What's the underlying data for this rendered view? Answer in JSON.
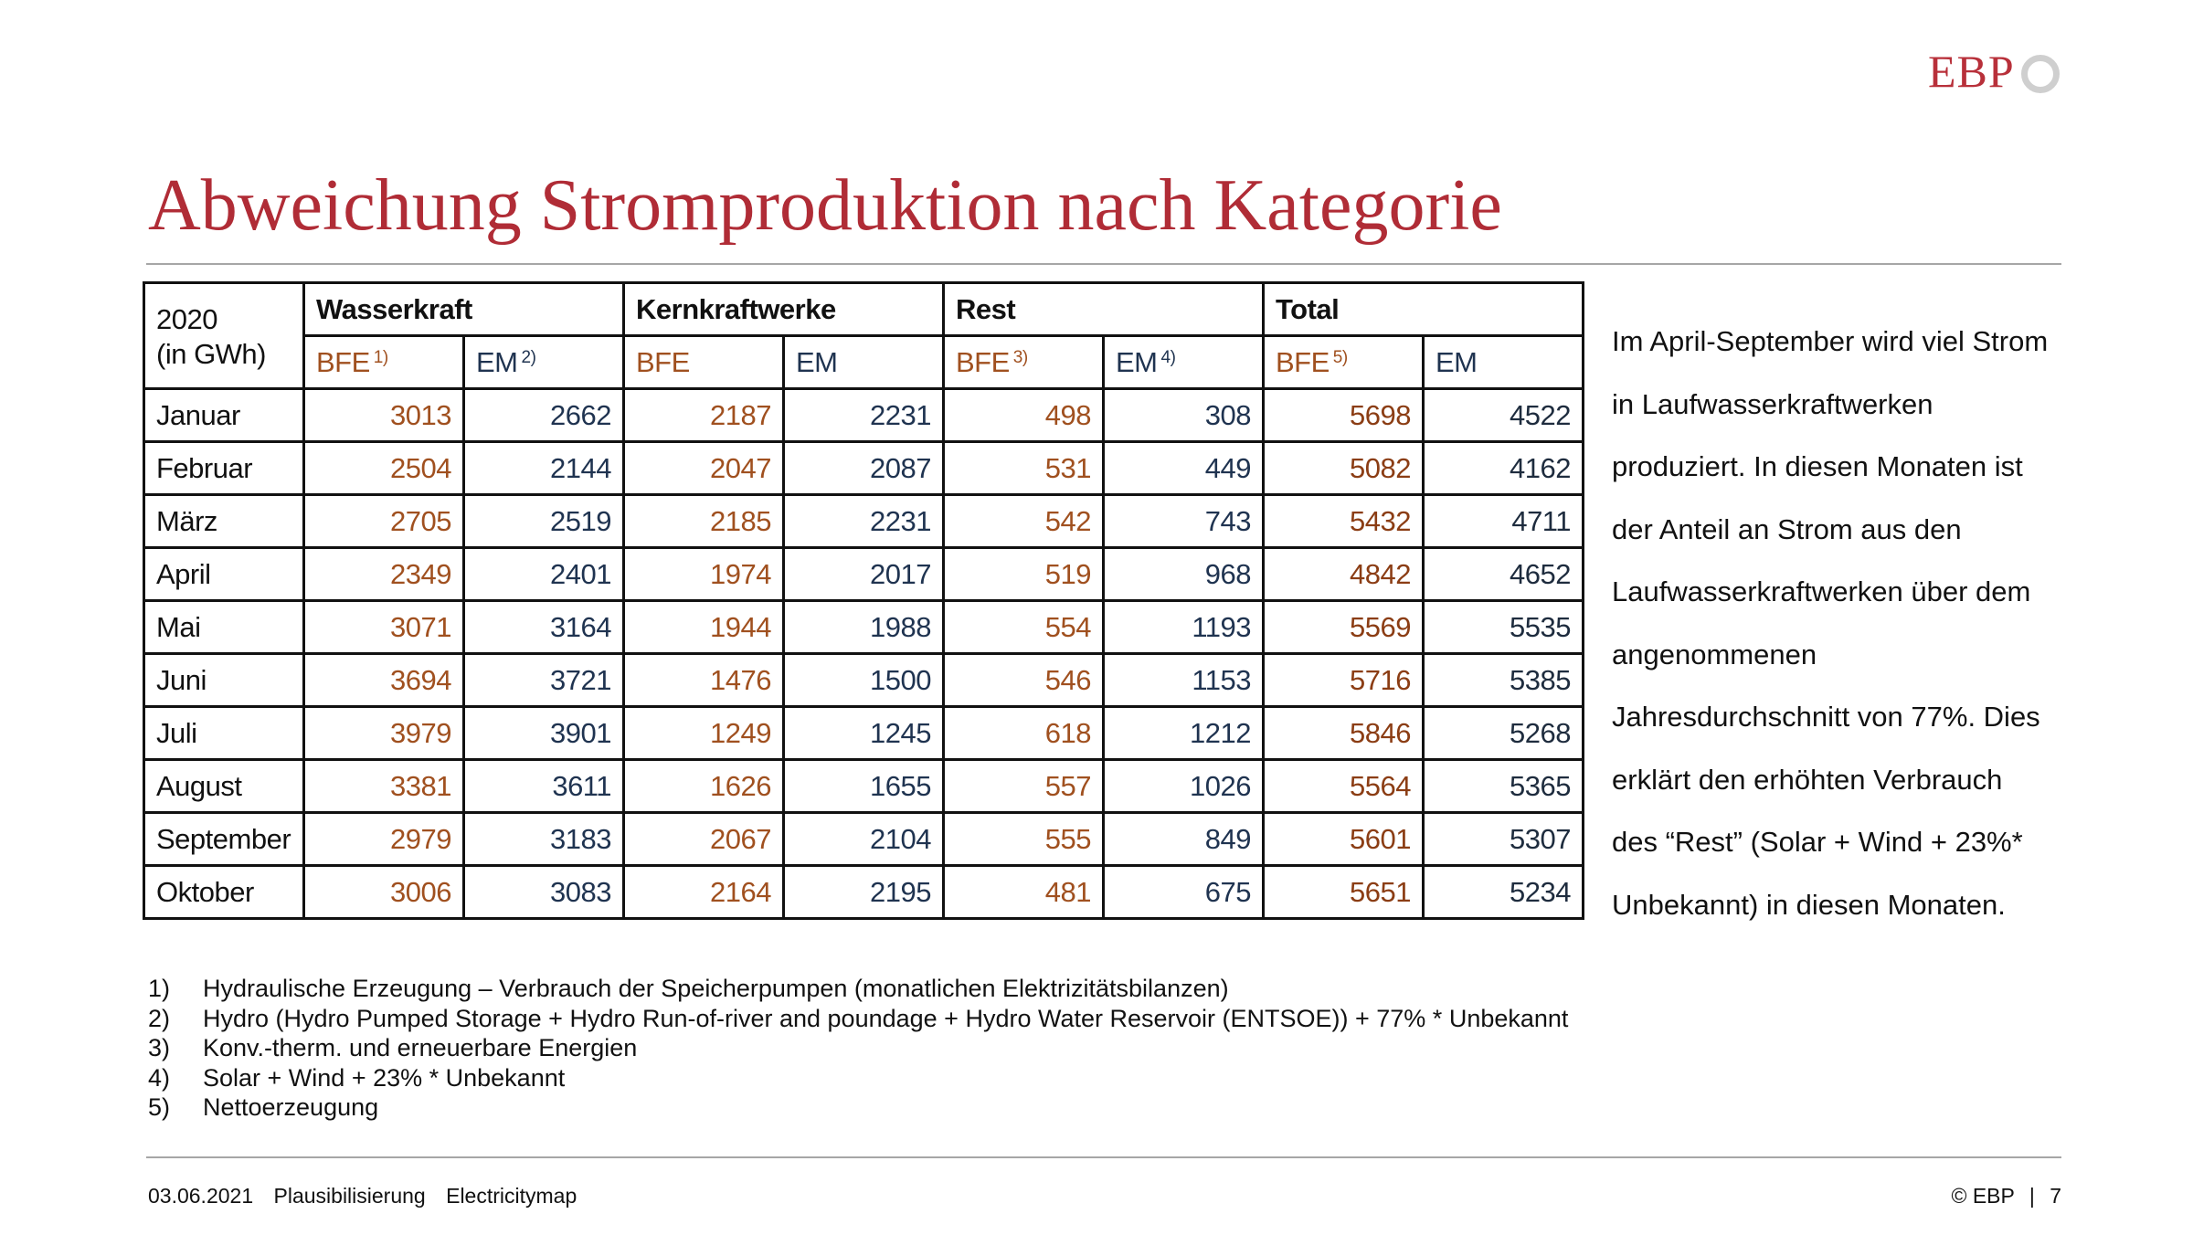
{
  "brand": {
    "logo_text": "EBP"
  },
  "title": "Abweichung Stromproduktion nach Kategorie",
  "table": {
    "corner_line1": "2020",
    "corner_line2": "(in GWh)",
    "groups": [
      "Wasserkraft",
      "Kernkraftwerke",
      "Rest",
      "Total"
    ],
    "subheaders": [
      {
        "label": "BFE",
        "sup": "1)"
      },
      {
        "label": "EM",
        "sup": "2)"
      },
      {
        "label": "BFE",
        "sup": ""
      },
      {
        "label": "EM",
        "sup": ""
      },
      {
        "label": "BFE",
        "sup": "3)"
      },
      {
        "label": "EM",
        "sup": "4)"
      },
      {
        "label": "BFE",
        "sup": "5)"
      },
      {
        "label": "EM",
        "sup": ""
      }
    ],
    "rows": [
      {
        "month": "Januar",
        "values": [
          "3013",
          "2662",
          "2187",
          "2231",
          "498",
          "308",
          "5698",
          "4522"
        ]
      },
      {
        "month": "Februar",
        "values": [
          "2504",
          "2144",
          "2047",
          "2087",
          "531",
          "449",
          "5082",
          "4162"
        ]
      },
      {
        "month": "März",
        "values": [
          "2705",
          "2519",
          "2185",
          "2231",
          "542",
          "743",
          "5432",
          "4711"
        ]
      },
      {
        "month": "April",
        "values": [
          "2349",
          "2401",
          "1974",
          "2017",
          "519",
          "968",
          "4842",
          "4652"
        ]
      },
      {
        "month": "Mai",
        "values": [
          "3071",
          "3164",
          "1944",
          "1988",
          "554",
          "1193",
          "5569",
          "5535"
        ]
      },
      {
        "month": "Juni",
        "values": [
          "3694",
          "3721",
          "1476",
          "1500",
          "546",
          "1153",
          "5716",
          "5385"
        ]
      },
      {
        "month": "Juli",
        "values": [
          "3979",
          "3901",
          "1249",
          "1245",
          "618",
          "1212",
          "5846",
          "5268"
        ]
      },
      {
        "month": "August",
        "values": [
          "3381",
          "3611",
          "1626",
          "1655",
          "557",
          "1026",
          "5564",
          "5365"
        ]
      },
      {
        "month": "September",
        "values": [
          "2979",
          "3183",
          "2067",
          "2104",
          "555",
          "849",
          "5601",
          "5307"
        ]
      },
      {
        "month": "Oktober",
        "values": [
          "3006",
          "3083",
          "2164",
          "2195",
          "481",
          "675",
          "5651",
          "5234"
        ]
      }
    ]
  },
  "side_text": "Im April-September wird viel Strom in Laufwasserkraftwerken produziert. In diesen Monaten ist der Anteil an Strom aus den Laufwasserkraftwerken über dem angenommenen Jahresdurchschnitt von 77%. Dies erklärt den erhöhten Verbrauch des “Rest” (Solar + Wind + 23%* Unbekannt) in diesen Monaten.",
  "footnotes": [
    {
      "num": "1)",
      "text": "Hydraulische Erzeugung – Verbrauch der Speicherpumpen (monatlichen Elektrizitätsbilanzen)"
    },
    {
      "num": "2)",
      "text": "Hydro (Hydro Pumped Storage + Hydro Run-of-river and poundage + Hydro Water Reservoir (ENTSOE)) + 77% * Unbekannt"
    },
    {
      "num": "3)",
      "text": "Konv.-therm. und erneuerbare Energien"
    },
    {
      "num": "4)",
      "text": "Solar + Wind + 23% * Unbekannt"
    },
    {
      "num": "5)",
      "text": "Nettoerzeugung"
    }
  ],
  "footer": {
    "date": "03.06.2021",
    "section": "Plausibilisierung",
    "topic": "Electricitymap",
    "copyright": "© EBP",
    "separator": "|",
    "page": "7"
  },
  "colors": {
    "title": "#b02c36",
    "bfe": "#a0501f",
    "em": "#1f3350",
    "bfe_total": "#8b3d14",
    "em_total": "#1e2c3e"
  }
}
